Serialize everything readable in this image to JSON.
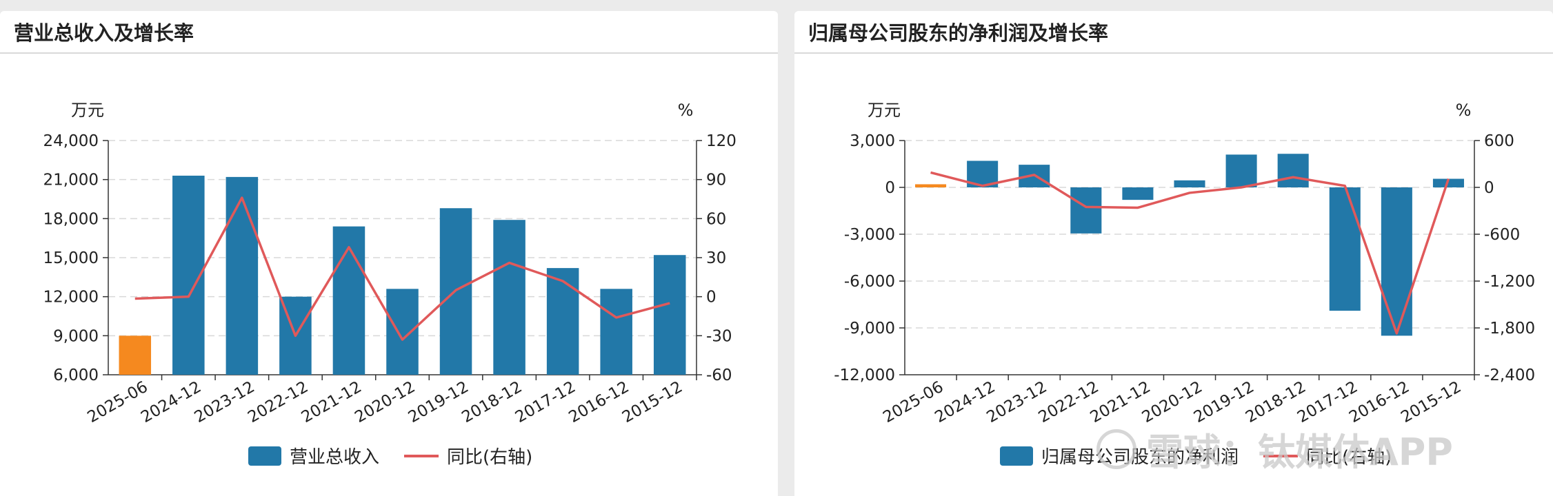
{
  "colors": {
    "bar": "#2278a8",
    "bar_highlight": "#f5891f",
    "line": "#e0595a",
    "grid": "#d8d8d8",
    "axis": "#333333"
  },
  "watermark": {
    "text": "雪球：钛媒体APP"
  },
  "panels": [
    {
      "title": "营业总收入及增长率",
      "left_unit": "万元",
      "right_unit": "%",
      "legend": {
        "bar_label": "营业总收入",
        "line_label": "同比(右轴)"
      }
    },
    {
      "title": "归属母公司股东的净利润及增长率",
      "left_unit": "万元",
      "right_unit": "%",
      "legend": {
        "bar_label": "归属母公司股东的净利润",
        "line_label": "同比(右轴)"
      }
    }
  ],
  "chart_data": [
    {
      "type": "bar",
      "categories": [
        "2025-06",
        "2024-12",
        "2023-12",
        "2022-12",
        "2021-12",
        "2020-12",
        "2019-12",
        "2018-12",
        "2017-12",
        "2016-12",
        "2015-12"
      ],
      "series": [
        {
          "name": "营业总收入",
          "type": "bar",
          "axis": "left",
          "values": [
            9000,
            21300,
            21200,
            12000,
            17400,
            12600,
            18800,
            17900,
            14200,
            12600,
            15200
          ]
        },
        {
          "name": "同比(右轴)",
          "type": "line",
          "axis": "right",
          "values": [
            -1.5,
            0,
            76,
            -30,
            38,
            -33,
            5,
            26,
            12,
            -16,
            -5
          ]
        }
      ],
      "highlight_index": 0,
      "ylim_left": [
        6000,
        24000
      ],
      "ylim_right": [
        -60,
        120
      ],
      "yticks_left": [
        "24,000",
        "21,000",
        "18,000",
        "15,000",
        "12,000",
        "9,000",
        "6,000"
      ],
      "yticks_right": [
        "120",
        "90",
        "60",
        "30",
        "0",
        "-30",
        "-60"
      ],
      "grid": true,
      "legend_position": "bottom"
    },
    {
      "type": "bar",
      "categories": [
        "2025-06",
        "2024-12",
        "2023-12",
        "2022-12",
        "2021-12",
        "2020-12",
        "2019-12",
        "2018-12",
        "2017-12",
        "2016-12",
        "2015-12"
      ],
      "series": [
        {
          "name": "归属母公司股东的净利润",
          "type": "bar",
          "axis": "left",
          "values": [
            200,
            1700,
            1450,
            -2950,
            -800,
            450,
            2100,
            2150,
            -7900,
            -9500,
            550
          ]
        },
        {
          "name": "同比(右轴)",
          "type": "line",
          "axis": "right",
          "values": [
            190,
            20,
            160,
            -250,
            -260,
            -70,
            0,
            130,
            20,
            -1870,
            110
          ]
        }
      ],
      "highlight_index": 0,
      "ylim_left": [
        -12000,
        3000
      ],
      "ylim_right": [
        -2400,
        600
      ],
      "yticks_left": [
        "3,000",
        "0",
        "-3,000",
        "-6,000",
        "-9,000",
        "-12,000"
      ],
      "yticks_right": [
        "600",
        "0",
        "-600",
        "-1,200",
        "-1,800",
        "-2,400"
      ],
      "grid": true,
      "legend_position": "bottom"
    }
  ]
}
